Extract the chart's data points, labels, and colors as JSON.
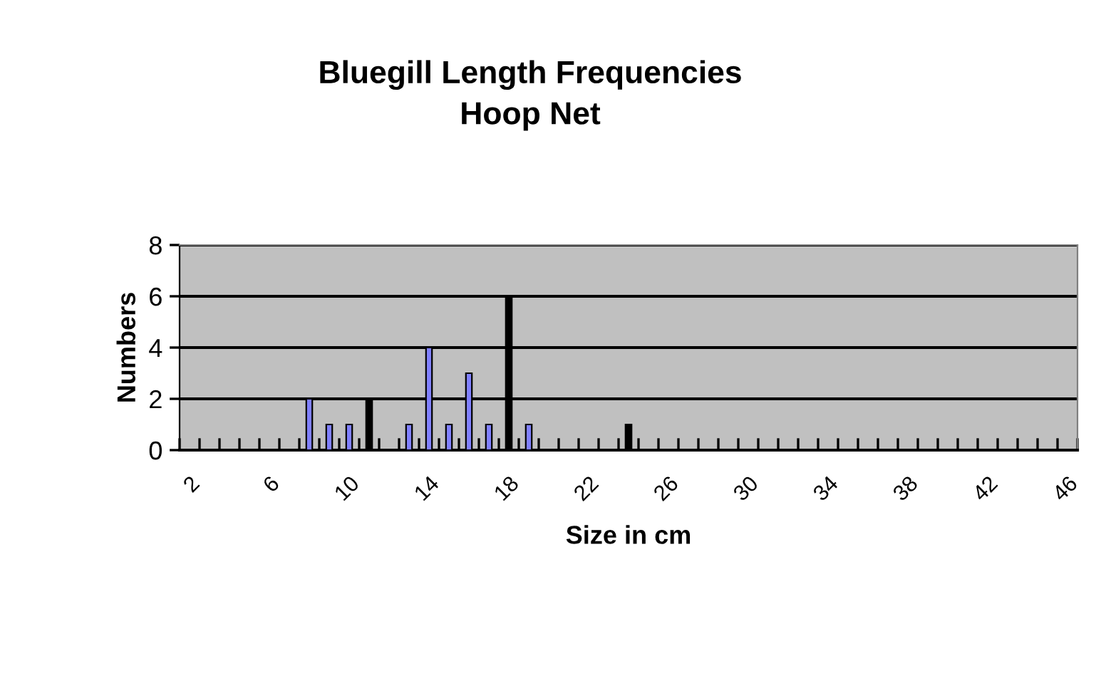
{
  "chart_data": {
    "type": "bar",
    "title": "Bluegill Length Frequencies\nHoop Net",
    "xlabel": "Size in cm",
    "ylabel": "Numbers",
    "categories": [
      "2",
      null,
      null,
      null,
      "6",
      null,
      null,
      null,
      "10",
      null,
      null,
      null,
      "14",
      null,
      null,
      null,
      "18",
      null,
      null,
      null,
      "22",
      null,
      null,
      null,
      "26",
      null,
      null,
      null,
      "30",
      null,
      null,
      null,
      "34",
      null,
      null,
      null,
      "38",
      null,
      null,
      null,
      "42",
      null,
      null,
      null,
      "46"
    ],
    "values": [
      0,
      0,
      0,
      0,
      0,
      0,
      2,
      1,
      1,
      2,
      0,
      1,
      4,
      1,
      3,
      1,
      6,
      1,
      0,
      0,
      0,
      0,
      1,
      0,
      0,
      0,
      0,
      0,
      0,
      0,
      0,
      0,
      0,
      0,
      0,
      0,
      0,
      0,
      0,
      0,
      0,
      0,
      0,
      0,
      0
    ],
    "colors": [
      "#8080ff",
      "#8080ff",
      "#8080ff",
      "#8080ff",
      "#8080ff",
      "#8080ff",
      "#8080ff",
      "#8080ff",
      "#8080ff",
      "#000000",
      "#8080ff",
      "#8080ff",
      "#8080ff",
      "#8080ff",
      "#8080ff",
      "#8080ff",
      "#000000",
      "#8080ff",
      "#8080ff",
      "#8080ff",
      "#8080ff",
      "#8080ff",
      "#000000",
      "#8080ff",
      "#8080ff",
      "#8080ff",
      "#8080ff",
      "#8080ff",
      "#8080ff",
      "#8080ff",
      "#8080ff",
      "#8080ff",
      "#8080ff",
      "#8080ff",
      "#8080ff",
      "#8080ff",
      "#8080ff",
      "#8080ff",
      "#8080ff",
      "#8080ff",
      "#8080ff",
      "#8080ff",
      "#8080ff",
      "#8080ff",
      "#8080ff"
    ],
    "ylim": [
      0,
      8
    ],
    "yticks": [
      0,
      2,
      4,
      6,
      8
    ],
    "grid": "y",
    "legend": false
  }
}
